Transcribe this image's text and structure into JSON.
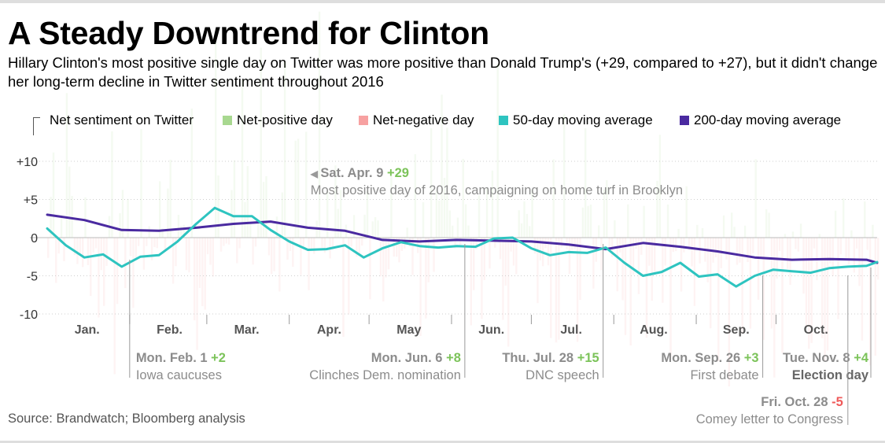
{
  "title": "A Steady Downtrend for Clinton",
  "subtitle": "Hillary Clinton's most positive single day on Twitter was more positive than Donald Trump's (+29, compared to +27), but it didn't change her long-term decline in Twitter sentiment throughout 2016",
  "source": "Source: Brandwatch; Bloomberg analysis",
  "colors": {
    "positive": "#9fd28a",
    "negative": "#f39a9a",
    "ma50": "#2ec4c0",
    "ma200": "#4a2aa0",
    "label_gray": "#8c8c8c",
    "plus_green": "#7cc35a",
    "minus_red": "#ef5a5a"
  },
  "legend": [
    {
      "key": "net",
      "label": "Net sentiment on Twitter",
      "swatch": "none"
    },
    {
      "key": "pos",
      "label": "Net-positive day",
      "swatch": "#a8d890"
    },
    {
      "key": "neg",
      "label": "Net-negative day",
      "swatch": "#f7a1a1"
    },
    {
      "key": "ma50",
      "label": "50-day moving average",
      "swatch": "#2ec4c0"
    },
    {
      "key": "ma200",
      "label": "200-day moving average",
      "swatch": "#4a2aa0"
    }
  ],
  "chart_data": {
    "type": "bar",
    "x_axis": "date (2016)",
    "ylim": [
      -10,
      10
    ],
    "yticks": [
      {
        "value": 10,
        "label": "+10"
      },
      {
        "value": 5,
        "label": "+5"
      },
      {
        "value": 0,
        "label": "0"
      },
      {
        "value": -5,
        "label": "-5"
      },
      {
        "value": -10,
        "label": "-10"
      }
    ],
    "months": [
      {
        "month": 1,
        "label": "Jan."
      },
      {
        "month": 2,
        "label": "Feb."
      },
      {
        "month": 3,
        "label": "Mar."
      },
      {
        "month": 4,
        "label": "Apr."
      },
      {
        "month": 5,
        "label": "May"
      },
      {
        "month": 6,
        "label": "Jun."
      },
      {
        "month": 7,
        "label": "Jul."
      },
      {
        "month": 8,
        "label": "Aug."
      },
      {
        "month": 9,
        "label": "Sep."
      },
      {
        "month": 10,
        "label": "Oct."
      }
    ],
    "series": [
      {
        "name": "Net sentiment on Twitter",
        "kind": "daily bars, green if net-positive, red if net-negative"
      },
      {
        "name": "50-day moving average",
        "x": [
          "2016-01-01",
          "2016-01-08",
          "2016-01-15",
          "2016-01-22",
          "2016-01-29",
          "2016-02-05",
          "2016-02-12",
          "2016-02-19",
          "2016-02-26",
          "2016-03-04",
          "2016-03-11",
          "2016-03-18",
          "2016-03-25",
          "2016-04-01",
          "2016-04-08",
          "2016-04-15",
          "2016-04-22",
          "2016-04-29",
          "2016-05-06",
          "2016-05-13",
          "2016-05-20",
          "2016-05-27",
          "2016-06-03",
          "2016-06-10",
          "2016-06-17",
          "2016-06-24",
          "2016-07-01",
          "2016-07-08",
          "2016-07-15",
          "2016-07-22",
          "2016-07-29",
          "2016-08-05",
          "2016-08-12",
          "2016-08-19",
          "2016-08-26",
          "2016-09-02",
          "2016-09-09",
          "2016-09-16",
          "2016-09-23",
          "2016-09-30",
          "2016-10-07",
          "2016-10-14",
          "2016-10-21",
          "2016-10-28",
          "2016-11-04",
          "2016-11-08"
        ],
        "y": [
          1.2,
          -1.0,
          -2.6,
          -2.2,
          -3.8,
          -2.5,
          -2.3,
          -0.5,
          1.8,
          3.9,
          2.8,
          2.8,
          1.0,
          -0.5,
          -1.6,
          -1.5,
          -1.0,
          -2.6,
          -1.4,
          -0.6,
          -1.1,
          -1.3,
          -1.1,
          -1.2,
          -0.1,
          0.0,
          -1.4,
          -2.3,
          -1.9,
          -2.0,
          -1.3,
          -3.3,
          -5.0,
          -4.5,
          -3.3,
          -5.1,
          -4.8,
          -6.4,
          -5.0,
          -4.2,
          -4.4,
          -4.6,
          -4.0,
          -3.8,
          -3.7,
          -3.2
        ]
      },
      {
        "name": "200-day moving average",
        "x": [
          "2016-01-01",
          "2016-01-15",
          "2016-01-29",
          "2016-02-12",
          "2016-02-26",
          "2016-03-11",
          "2016-03-25",
          "2016-04-08",
          "2016-04-22",
          "2016-05-06",
          "2016-05-20",
          "2016-06-03",
          "2016-06-17",
          "2016-07-01",
          "2016-07-15",
          "2016-07-29",
          "2016-08-12",
          "2016-08-26",
          "2016-09-09",
          "2016-09-23",
          "2016-10-07",
          "2016-10-21",
          "2016-11-04",
          "2016-11-08"
        ],
        "y": [
          3.0,
          2.3,
          1.0,
          0.9,
          1.3,
          1.8,
          2.1,
          1.3,
          0.9,
          -0.3,
          -0.5,
          -0.3,
          -0.4,
          -0.5,
          -0.9,
          -1.5,
          -0.7,
          -1.2,
          -1.8,
          -2.6,
          -2.9,
          -2.8,
          -2.9,
          -3.3
        ]
      }
    ],
    "annotations": [
      {
        "date": "2016-04-09",
        "head": "Sat. Apr. 9",
        "value": "+29",
        "sign": "pos",
        "desc": "Most positive day of 2016, campaigning on home turf in Brooklyn"
      },
      {
        "date": "2016-02-01",
        "head": "Mon. Feb. 1",
        "value": "+2",
        "sign": "pos",
        "desc": "Iowa caucuses"
      },
      {
        "date": "2016-06-06",
        "head": "Mon. Jun. 6",
        "value": "+8",
        "sign": "pos",
        "desc": "Clinches Dem. nomination"
      },
      {
        "date": "2016-07-28",
        "head": "Thu. Jul. 28",
        "value": "+15",
        "sign": "pos",
        "desc": "DNC speech"
      },
      {
        "date": "2016-09-26",
        "head": "Mon. Sep. 26",
        "value": "+3",
        "sign": "pos",
        "desc": "First debate"
      },
      {
        "date": "2016-11-08",
        "head": "Tue. Nov. 8",
        "value": "+4",
        "sign": "pos",
        "desc": "Election day"
      },
      {
        "date": "2016-10-28",
        "head": "Fri. Oct. 28",
        "value": "-5",
        "sign": "neg",
        "desc": "Comey letter to Congress"
      }
    ]
  }
}
